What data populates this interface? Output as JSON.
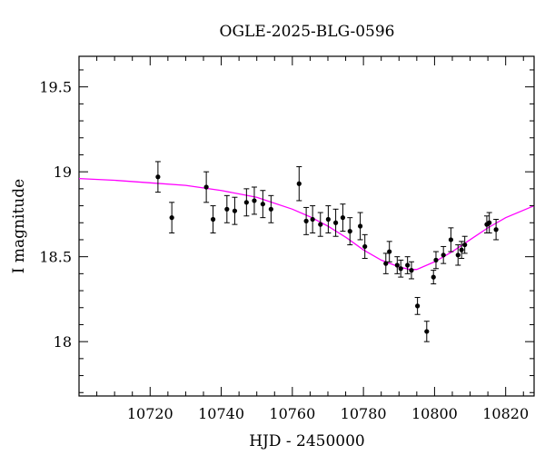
{
  "chart_data": {
    "type": "scatter",
    "title": "OGLE-2025-BLG-0596",
    "xlabel": "HJD - 2450000",
    "ylabel": "I magnitude",
    "xlim": [
      10700,
      10828
    ],
    "ylim": [
      19.68,
      17.68
    ],
    "y_inverted": true,
    "x_ticks": [
      10720,
      10740,
      10760,
      10780,
      10800,
      10820
    ],
    "y_ticks": [
      18,
      18.5,
      19,
      19.5
    ],
    "y_tick_labels": [
      "18",
      "18.5",
      "19",
      "19.5"
    ],
    "x_minor_step": 5,
    "y_minor_step": 0.1,
    "grid": false,
    "colors": {
      "model": "#ff00ff",
      "points": "#000000"
    },
    "series": [
      {
        "kind": "points_with_errorbars",
        "x": [
          10722.2,
          10726.1,
          10735.8,
          10737.7,
          10741.6,
          10743.8,
          10747.1,
          10749.3,
          10751.7,
          10754.0,
          10761.9,
          10763.9,
          10765.7,
          10767.9,
          10770.1,
          10772.2,
          10774.2,
          10776.2,
          10779.1,
          10780.4,
          10786.3,
          10787.3,
          10789.5,
          10790.5,
          10792.4,
          10793.5,
          10795.2,
          10797.8,
          10799.7,
          10800.4,
          10802.5,
          10804.6,
          10806.6,
          10807.6,
          10808.5,
          10814.7,
          10815.4,
          10817.3
        ],
        "y": [
          18.97,
          18.73,
          18.91,
          18.72,
          18.78,
          18.77,
          18.82,
          18.83,
          18.81,
          18.78,
          18.93,
          18.71,
          18.72,
          18.69,
          18.72,
          18.7,
          18.73,
          18.65,
          18.68,
          18.56,
          18.46,
          18.53,
          18.45,
          18.43,
          18.45,
          18.42,
          18.21,
          18.06,
          18.38,
          18.48,
          18.51,
          18.6,
          18.51,
          18.54,
          18.57,
          18.69,
          18.7,
          18.66
        ],
        "yerr": [
          0.09,
          0.09,
          0.09,
          0.08,
          0.08,
          0.08,
          0.08,
          0.08,
          0.08,
          0.08,
          0.1,
          0.08,
          0.08,
          0.07,
          0.08,
          0.08,
          0.08,
          0.08,
          0.08,
          0.07,
          0.06,
          0.06,
          0.05,
          0.05,
          0.05,
          0.05,
          0.05,
          0.06,
          0.04,
          0.05,
          0.05,
          0.07,
          0.06,
          0.05,
          0.05,
          0.05,
          0.06,
          0.06
        ]
      },
      {
        "kind": "model_curve",
        "x": [
          10700,
          10710,
          10720,
          10730,
          10740,
          10750,
          10760,
          10765,
          10770,
          10775,
          10780,
          10785,
          10790,
          10793,
          10795,
          10800,
          10805,
          10810,
          10815,
          10820,
          10828
        ],
        "y": [
          18.96,
          18.95,
          18.935,
          18.92,
          18.89,
          18.85,
          18.78,
          18.735,
          18.68,
          18.615,
          18.54,
          18.48,
          18.44,
          18.425,
          18.425,
          18.47,
          18.53,
          18.6,
          18.67,
          18.73,
          18.8
        ]
      }
    ]
  }
}
